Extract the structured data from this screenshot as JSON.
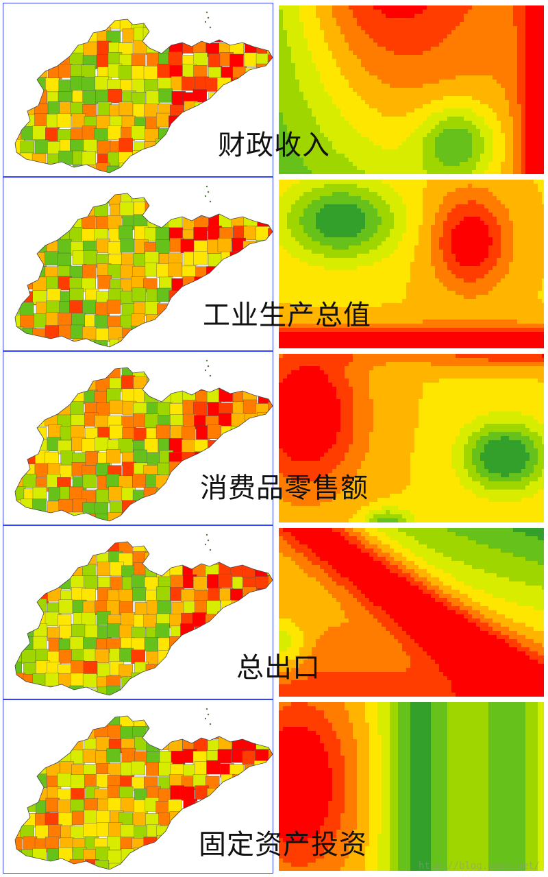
{
  "panels": [
    {
      "title": "财政收入",
      "surface": "s1"
    },
    {
      "title": "工业生产总值",
      "surface": "s2"
    },
    {
      "title": "消费品零售额",
      "surface": "s3"
    },
    {
      "title": "总出口",
      "surface": "s4"
    },
    {
      "title": "固定资产投资",
      "surface": "s5"
    }
  ],
  "watermark": "http://blog.csdn.net/",
  "colors": {
    "ramp": [
      "#33a02c",
      "#66c21a",
      "#9fd600",
      "#d8ec00",
      "#ffe600",
      "#ffb400",
      "#ff7c00",
      "#ff3d00",
      "#ff0000"
    ],
    "map_border": "#3344ff",
    "county_line": "#555555"
  }
}
